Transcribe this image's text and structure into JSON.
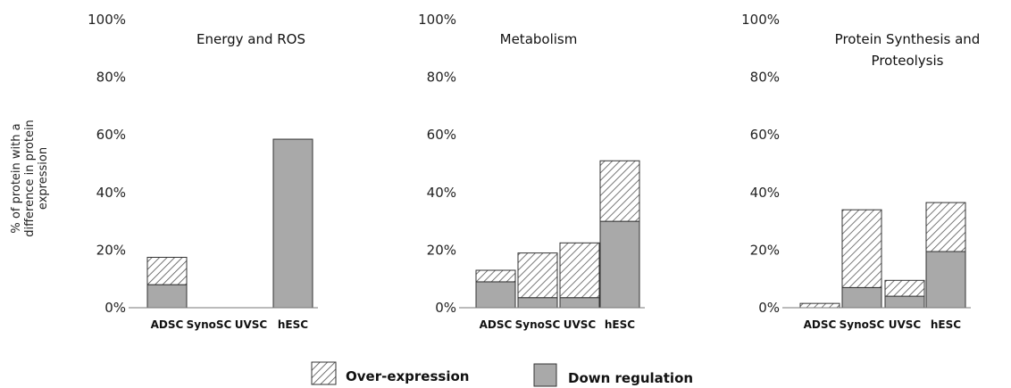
{
  "y_axis_label_lines": [
    "% of protein with a",
    "difference in protein",
    "expression"
  ],
  "legend": {
    "over": "Over-expression",
    "down": "Down regulation"
  },
  "colors": {
    "down_fill": "#a9a9a9",
    "bar_stroke": "#333333",
    "hatch_line": "#555555",
    "axis": "#777777"
  },
  "chart_data": [
    {
      "type": "bar",
      "stacked": true,
      "title_lines": [
        "Energy and ROS"
      ],
      "categories": [
        "ADSC",
        "SynoSC",
        "UVSC",
        "hESC"
      ],
      "series": [
        {
          "name": "Down regulation",
          "pattern": "solid",
          "values": [
            8,
            0,
            0,
            58.5
          ]
        },
        {
          "name": "Over-expression",
          "pattern": "hatch",
          "values": [
            9.5,
            0,
            0,
            0
          ]
        }
      ],
      "yticks": [
        "0%",
        "20%",
        "40%",
        "60%",
        "80%",
        "100%"
      ],
      "ylim": [
        0,
        100
      ]
    },
    {
      "type": "bar",
      "stacked": true,
      "title_lines": [
        "Metabolism"
      ],
      "categories": [
        "ADSC",
        "SynoSC",
        "UVSC",
        "hESC"
      ],
      "series": [
        {
          "name": "Down regulation",
          "pattern": "solid",
          "values": [
            9,
            3.5,
            3.5,
            30
          ]
        },
        {
          "name": "Over-expression",
          "pattern": "hatch",
          "values": [
            4,
            15.5,
            19,
            21
          ]
        }
      ],
      "yticks": [
        "0%",
        "20%",
        "40%",
        "60%",
        "80%",
        "100%"
      ],
      "ylim": [
        0,
        100
      ]
    },
    {
      "type": "bar",
      "stacked": true,
      "title_lines": [
        "Protein Synthesis and",
        "Proteolysis"
      ],
      "categories": [
        "ADSC",
        "SynoSC",
        "UVSC",
        "hESC"
      ],
      "series": [
        {
          "name": "Down regulation",
          "pattern": "solid",
          "values": [
            0,
            7,
            4,
            19.5
          ]
        },
        {
          "name": "Over-expression",
          "pattern": "hatch",
          "values": [
            1.5,
            27,
            5.5,
            17
          ]
        }
      ],
      "yticks": [
        "0%",
        "20%",
        "40%",
        "60%",
        "80%",
        "100%"
      ],
      "ylim": [
        0,
        100
      ]
    }
  ]
}
